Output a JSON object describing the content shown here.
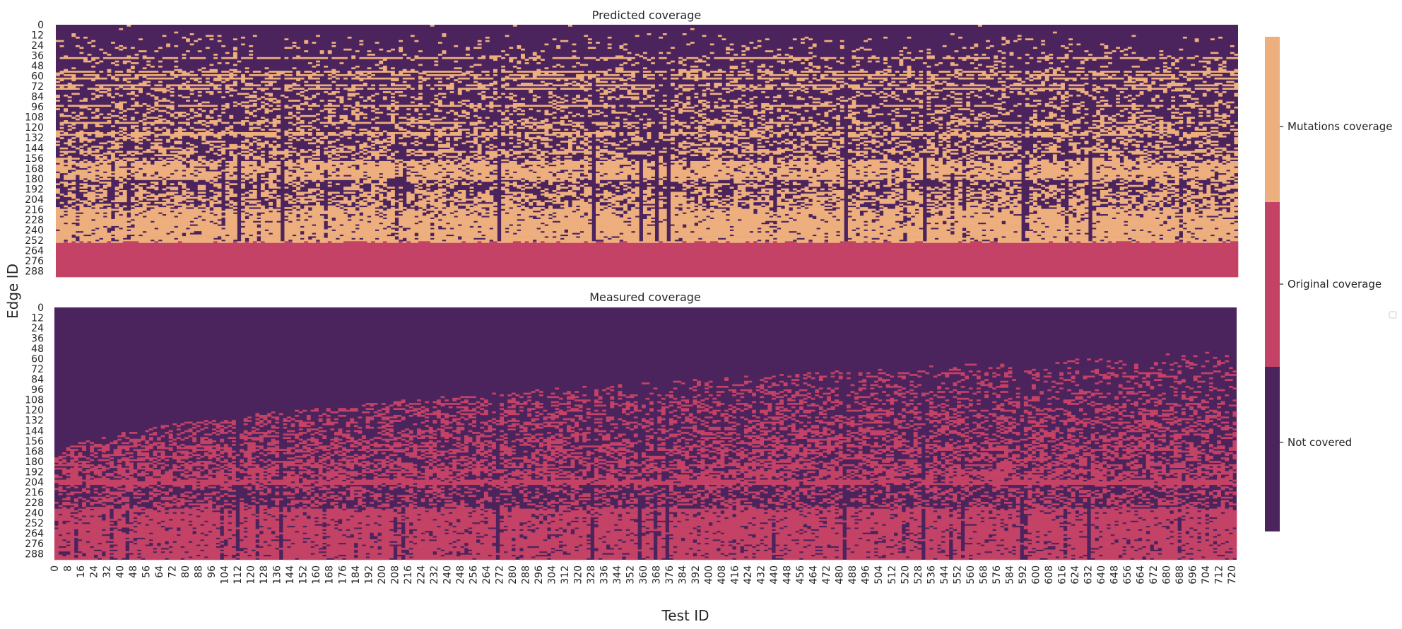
{
  "chart_data": [
    {
      "type": "heatmap",
      "title": "Predicted coverage",
      "ylabel": "Edge ID",
      "xlabel": "",
      "x_range": [
        0,
        723
      ],
      "y_range": [
        0,
        295
      ],
      "y_ticks": [
        0,
        12,
        24,
        36,
        48,
        60,
        72,
        84,
        96,
        108,
        120,
        132,
        144,
        156,
        168,
        180,
        192,
        204,
        216,
        228,
        240,
        252,
        264,
        276,
        288
      ],
      "categories_present": [
        "Not covered",
        "Mutations coverage",
        "Original coverage"
      ],
      "value_description": "Rows 0-~10 mostly not covered; rows ~10-~158 sparse/dense mixture of not covered with scattered and row-striped mutations coverage; rows ~158-~253 mostly mutations coverage with vertical not-covered streaks; rows ~256-295 entirely original coverage"
    },
    {
      "type": "heatmap",
      "title": "Measured coverage",
      "ylabel": "Edge ID",
      "xlabel": "Test ID",
      "x_range": [
        0,
        723
      ],
      "y_range": [
        0,
        295
      ],
      "x_ticks": [
        0,
        8,
        16,
        24,
        32,
        40,
        48,
        56,
        64,
        72,
        80,
        88,
        96,
        104,
        112,
        120,
        128,
        136,
        144,
        152,
        160,
        168,
        176,
        184,
        192,
        200,
        208,
        216,
        224,
        232,
        240,
        248,
        256,
        264,
        272,
        280,
        288,
        296,
        304,
        312,
        320,
        328,
        336,
        344,
        352,
        360,
        368,
        376,
        384,
        392,
        400,
        408,
        416,
        424,
        432,
        440,
        448,
        456,
        464,
        472,
        480,
        488,
        496,
        504,
        512,
        520,
        528,
        536,
        544,
        552,
        560,
        568,
        576,
        584,
        592,
        600,
        608,
        616,
        624,
        632,
        640,
        648,
        656,
        664,
        672,
        680,
        688,
        696,
        704,
        712,
        720
      ],
      "y_ticks": [
        0,
        12,
        24,
        36,
        48,
        60,
        72,
        84,
        96,
        108,
        120,
        132,
        144,
        156,
        168,
        180,
        192,
        204,
        216,
        228,
        240,
        252,
        264,
        276,
        288
      ],
      "categories_present": [
        "Not covered",
        "Original coverage"
      ],
      "value_description": "Triangular boundary: low test IDs start covering only from higher edge IDs; coverage density increases with edge ID; band of original coverage near edge 200-205, dense original coverage from ~235 to 295 with vertical not-covered streaks"
    }
  ],
  "colorbar": {
    "labels": [
      "Mutations coverage",
      "Original coverage",
      "Not covered"
    ],
    "colors": {
      "mutations": "#eeaf7e",
      "original": "#c44266",
      "not_covered": "#4b235d"
    }
  },
  "figure": {
    "ylabel": "Edge ID",
    "xlabel": "Test ID"
  }
}
